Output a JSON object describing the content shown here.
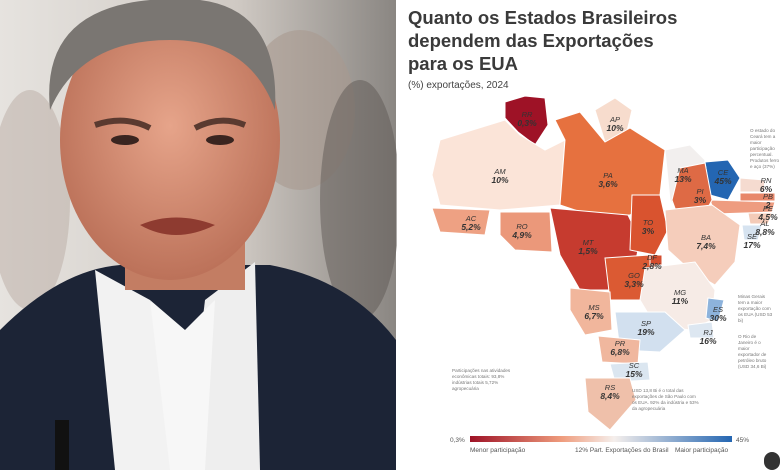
{
  "title": [
    "Quanto os Estados Brasileiros",
    "dependem das Exportações",
    "para os EUA"
  ],
  "subtitle": "(%) exportações, 2024",
  "states": [
    {
      "code": "RR",
      "value": "0,3%",
      "color": "#9e1226"
    },
    {
      "code": "AP",
      "value": "10%",
      "color": "#f7dccd"
    },
    {
      "code": "AM",
      "value": "10%",
      "color": "#fbe4d8"
    },
    {
      "code": "PA",
      "value": "3,6%",
      "color": "#e6713f"
    },
    {
      "code": "MA",
      "value": "13%",
      "color": "#f2efee"
    },
    {
      "code": "CE",
      "value": "45%",
      "color": "#2466b2"
    },
    {
      "code": "RN",
      "value": "6%",
      "color": "#f5dbd0"
    },
    {
      "code": "PB",
      "value": "2",
      "color": "#e8876a"
    },
    {
      "code": "PE",
      "value": "4,5%",
      "color": "#ee9c80"
    },
    {
      "code": "PI",
      "value": "3%",
      "color": "#de6a45"
    },
    {
      "code": "AL",
      "value": "8,8%",
      "color": "#f4cbb8"
    },
    {
      "code": "SE",
      "value": "17%",
      "color": "#d6e3f0"
    },
    {
      "code": "AC",
      "value": "5,2%",
      "color": "#eea183"
    },
    {
      "code": "RO",
      "value": "4,9%",
      "color": "#eb987a"
    },
    {
      "code": "MT",
      "value": "1,5%",
      "color": "#c63b2f"
    },
    {
      "code": "TO",
      "value": "3%",
      "color": "#d9532f"
    },
    {
      "code": "BA",
      "value": "7,4%",
      "color": "#f5cdbb"
    },
    {
      "code": "GO",
      "value": "3,3%",
      "color": "#db5a33"
    },
    {
      "code": "DF",
      "value": "2,8%",
      "color": "#d44d2f"
    },
    {
      "code": "MG",
      "value": "11%",
      "color": "#f6ebe6"
    },
    {
      "code": "ES",
      "value": "30%",
      "color": "#8db3dc"
    },
    {
      "code": "RJ",
      "value": "16%",
      "color": "#dde7f1"
    },
    {
      "code": "MS",
      "value": "6,7%",
      "color": "#f1b69c"
    },
    {
      "code": "SP",
      "value": "19%",
      "color": "#d2e0ef"
    },
    {
      "code": "PR",
      "value": "6,8%",
      "color": "#f0b79e"
    },
    {
      "code": "SC",
      "value": "15%",
      "color": "#dbe6f0"
    },
    {
      "code": "RS",
      "value": "8,4%",
      "color": "#efc0aa"
    }
  ],
  "notes": {
    "ceara": "O estado do Ceará tem a maior participação percentual. Produtos ferro e aço (37%)",
    "sector": "Participações nas atividades econômicas totais: 93,8% indústrias totais 5,72% agropecuária",
    "sp": "USD 13,8 Bi é o total das exportações de São Paulo com os EUA. 92% da indústria e 53% da agropecuária",
    "mg": "Minas Gerais tem a maior exportação com os EUA (USD 53 bi)",
    "rj": "O Rio de Janeiro é o maior exportador de petróleo bruto (USD 34,6 Bi)"
  },
  "legend": {
    "min": "0,3%",
    "min_label": "Menor participação",
    "mid_label": "12% Part. Exportações do Brasil",
    "max_label": "Maior participação",
    "max": "45%"
  }
}
